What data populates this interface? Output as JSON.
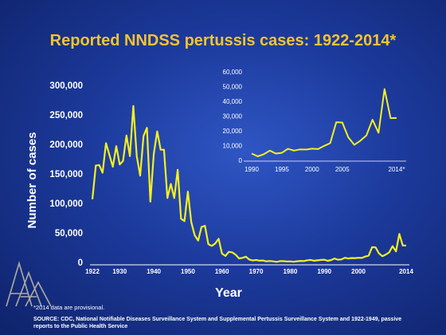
{
  "title": "Reported NNDSS pertussis cases: 1922-2014*",
  "footnote": "*2014 data are provisional.",
  "source": "SOURCE: CDC, National Notifiable Diseases Surveillance System and Supplemental Pertussis Surveillance System and 1922-1949, passive reports to the Public Health Service",
  "colors": {
    "line": "#f5f020",
    "title": "#f5c330",
    "text": "#ffffff"
  },
  "chart_data": [
    {
      "type": "line",
      "name": "main",
      "xlabel": "Year",
      "ylabel": "Number of cases",
      "xlim": [
        1922,
        2014
      ],
      "ylim": [
        0,
        300000
      ],
      "x_ticks": [
        1922,
        1930,
        1940,
        1950,
        1960,
        1970,
        1980,
        1990,
        2000,
        2014
      ],
      "x_tick_labels": [
        "1922",
        "1930",
        "1940",
        "1950",
        "1960",
        "1970",
        "1980",
        "1990",
        "2000",
        "2014"
      ],
      "y_ticks": [
        0,
        50000,
        100000,
        150000,
        200000,
        250000,
        300000
      ],
      "y_tick_labels": [
        "0",
        "50,000",
        "100,000",
        "150,000",
        "200,000",
        "250,000",
        "300,000"
      ],
      "grid": false,
      "x": [
        1922,
        1923,
        1924,
        1925,
        1926,
        1927,
        1928,
        1929,
        1930,
        1931,
        1932,
        1933,
        1934,
        1935,
        1936,
        1937,
        1938,
        1939,
        1940,
        1941,
        1942,
        1943,
        1944,
        1945,
        1946,
        1947,
        1948,
        1949,
        1950,
        1951,
        1952,
        1953,
        1954,
        1955,
        1956,
        1957,
        1958,
        1959,
        1960,
        1961,
        1962,
        1963,
        1964,
        1965,
        1966,
        1967,
        1968,
        1969,
        1970,
        1971,
        1972,
        1973,
        1974,
        1975,
        1976,
        1977,
        1978,
        1979,
        1980,
        1981,
        1982,
        1983,
        1984,
        1985,
        1986,
        1987,
        1988,
        1989,
        1990,
        1991,
        1992,
        1993,
        1994,
        1995,
        1996,
        1997,
        1998,
        1999,
        2000,
        2001,
        2002,
        2003,
        2004,
        2005,
        2006,
        2007,
        2008,
        2009,
        2010,
        2011,
        2012,
        2013,
        2014
      ],
      "y": [
        107000,
        164000,
        165000,
        152000,
        202000,
        182000,
        162000,
        197000,
        166000,
        172000,
        215000,
        180000,
        265000,
        180000,
        147000,
        214000,
        228000,
        103000,
        184000,
        222000,
        191000,
        191000,
        109000,
        133000,
        109000,
        157000,
        74000,
        70000,
        120000,
        68000,
        46000,
        37000,
        60000,
        62000,
        31000,
        28000,
        32000,
        40000,
        15000,
        11000,
        18000,
        17000,
        13000,
        6800,
        7700,
        9700,
        4800,
        3300,
        4200,
        3000,
        3300,
        1800,
        2400,
        1700,
        1000,
        2200,
        2100,
        1600,
        1700,
        1200,
        1900,
        2500,
        2300,
        3600,
        4200,
        2800,
        3500,
        4200,
        4600,
        2700,
        4100,
        6600,
        4600,
        5100,
        7800,
        6600,
        7400,
        7300,
        7900,
        7600,
        9800,
        11600,
        25800,
        25600,
        15600,
        10500,
        13300,
        16900,
        27500,
        18700,
        48300,
        28600,
        28700
      ]
    },
    {
      "type": "line",
      "name": "inset",
      "xlim": [
        1990,
        2014
      ],
      "ylim": [
        0,
        60000
      ],
      "x_ticks": [
        1990,
        1995,
        2000,
        2005,
        2014
      ],
      "x_tick_labels": [
        "1990",
        "1995",
        "2000",
        "2005",
        "2014*"
      ],
      "y_ticks": [
        0,
        10000,
        20000,
        30000,
        40000,
        50000,
        60000
      ],
      "y_tick_labels": [
        "0",
        "10,000",
        "20,000",
        "30,000",
        "40,000",
        "50,000",
        "60,000"
      ],
      "grid": false,
      "x": [
        1990,
        1991,
        1992,
        1993,
        1994,
        1995,
        1996,
        1997,
        1998,
        1999,
        2000,
        2001,
        2002,
        2003,
        2004,
        2005,
        2006,
        2007,
        2008,
        2009,
        2010,
        2011,
        2012,
        2013,
        2014
      ],
      "y": [
        4600,
        2700,
        4100,
        6600,
        4600,
        5100,
        7800,
        6600,
        7400,
        7300,
        7900,
        7600,
        9800,
        11600,
        25800,
        25600,
        15600,
        10500,
        13300,
        16900,
        27500,
        18700,
        48300,
        28600,
        28700
      ]
    }
  ]
}
